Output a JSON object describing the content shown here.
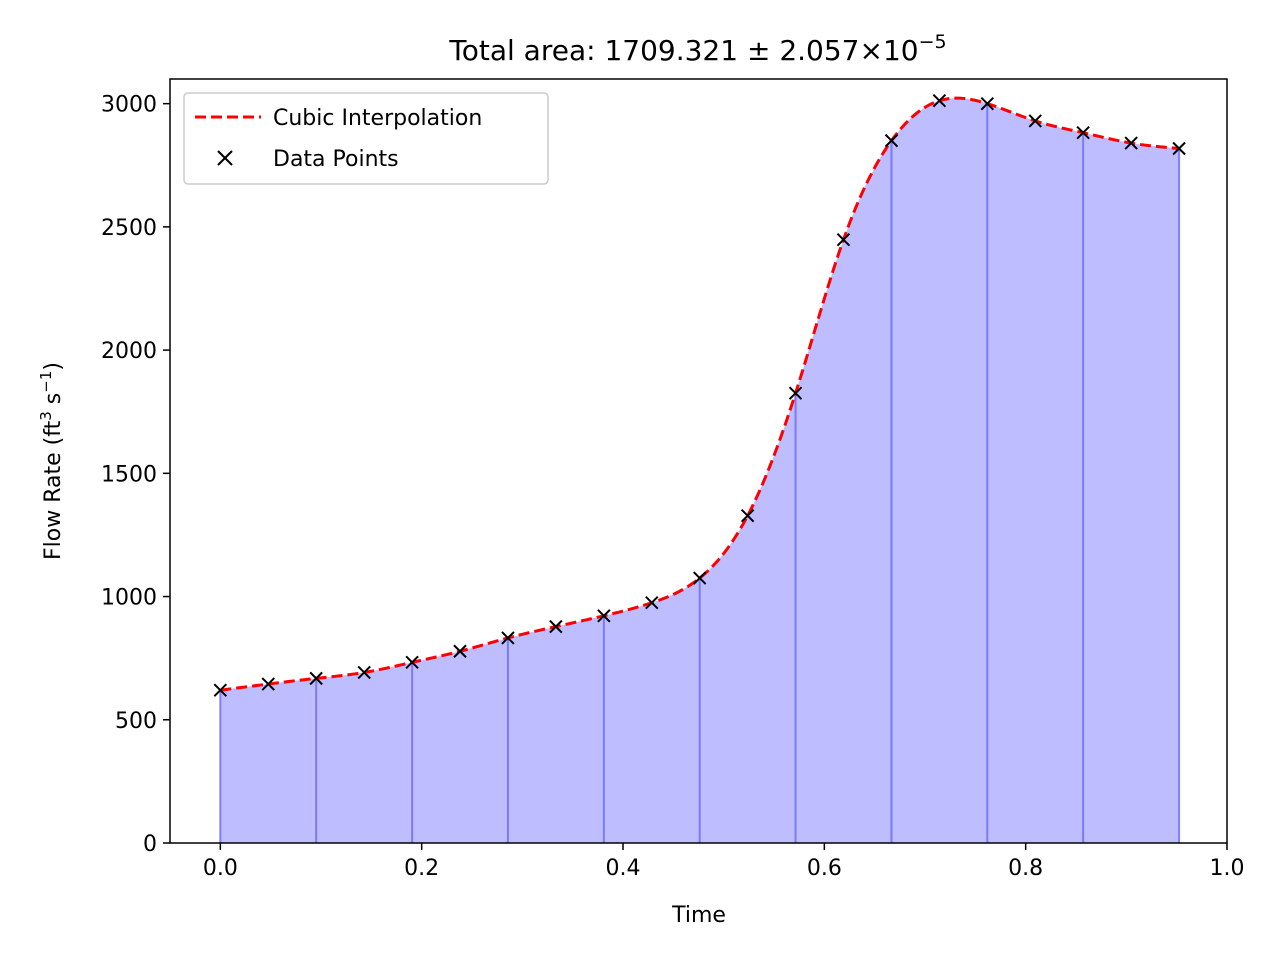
{
  "chart_data": {
    "type": "area",
    "title": "Total area: 1709.321 ± 2.057×10",
    "title_exponent": "−5",
    "xlabel": "Time",
    "ylabel_main": "Flow Rate (ft",
    "ylabel_exp1": "3",
    "ylabel_mid": " s",
    "ylabel_exp2": "−1",
    "ylabel_end": ")",
    "xlim": [
      -0.05,
      1.0
    ],
    "ylim": [
      0,
      3100
    ],
    "xticks": [
      0.0,
      0.2,
      0.4,
      0.6,
      0.8,
      1.0
    ],
    "xtick_labels": [
      "0.0",
      "0.2",
      "0.4",
      "0.6",
      "0.8",
      "1.0"
    ],
    "yticks": [
      0,
      500,
      1000,
      1500,
      2000,
      2500,
      3000
    ],
    "ytick_labels": [
      "0",
      "500",
      "1000",
      "1500",
      "2000",
      "2500",
      "3000"
    ],
    "grid": false,
    "legend_position": "top-left",
    "series": [
      {
        "name": "Cubic Interpolation",
        "style": "dashed-line",
        "color": "#ff0000"
      },
      {
        "name": "Data Points",
        "style": "x-marker",
        "color": "#000000",
        "x": [
          0.0,
          0.0476,
          0.0952,
          0.1429,
          0.1905,
          0.2381,
          0.2857,
          0.3333,
          0.381,
          0.4286,
          0.4762,
          0.5238,
          0.5714,
          0.619,
          0.6667,
          0.7143,
          0.7619,
          0.8095,
          0.8571,
          0.9048,
          0.9524
        ],
        "y": [
          620,
          645,
          668,
          692,
          733,
          778,
          832,
          878,
          922,
          975,
          1075,
          1328,
          1825,
          2448,
          2850,
          3012,
          3000,
          2930,
          2882,
          2840,
          2818
        ]
      }
    ],
    "fill_color": "#bdbdff",
    "segment_line_color": "#6e6efa",
    "segment_x": [
      0.0,
      0.0952,
      0.1905,
      0.2857,
      0.381,
      0.4762,
      0.5714,
      0.6667,
      0.7619,
      0.8571,
      0.9524
    ]
  }
}
